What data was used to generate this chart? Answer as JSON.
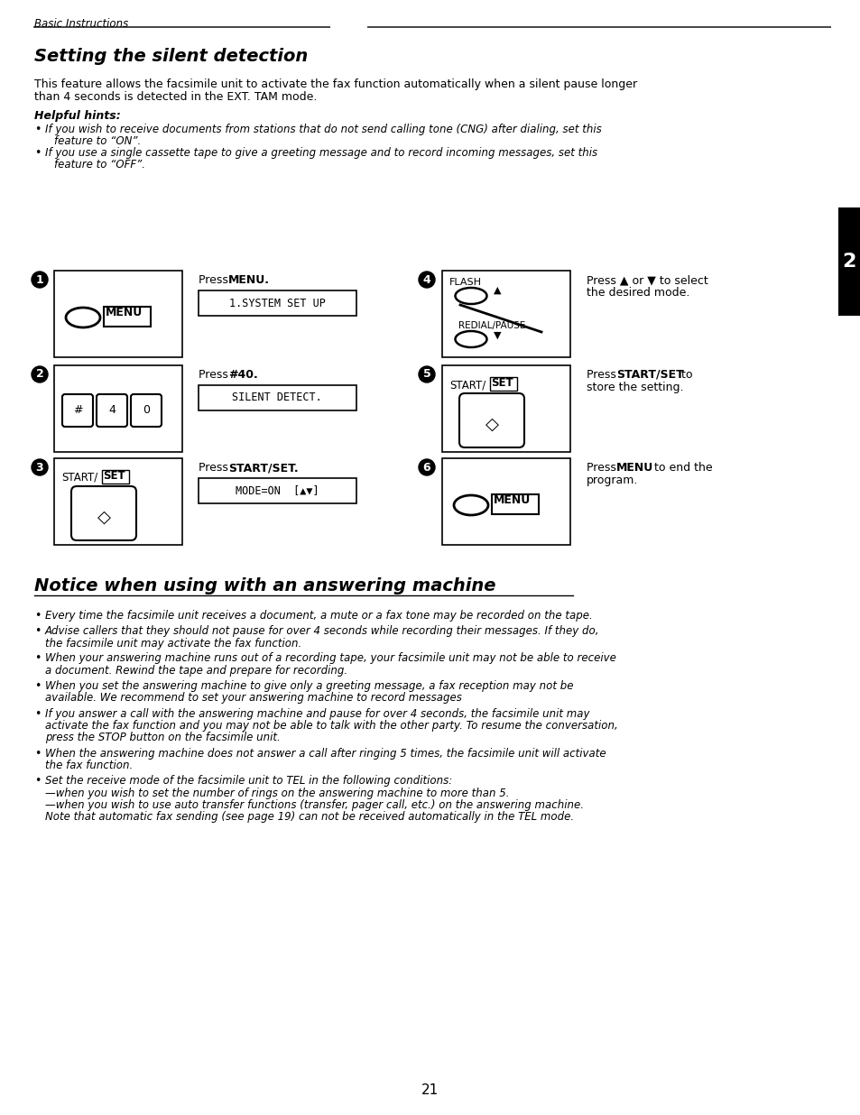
{
  "bg": "#ffffff",
  "header": "Basic Instructions",
  "title1": "Setting the silent detection",
  "body1_line1": "This feature allows the facsimile unit to activate the fax function automatically when a silent pause longer",
  "body1_line2": "than 4 seconds is detected in the EXT. TAM mode.",
  "hints_title": "Helpful hints:",
  "hint1_line1": "If you wish to receive documents from stations that do not send calling tone (CNG) after dialing, set this",
  "hint1_line2": "feature to “ON”.",
  "hint2_line1": "If you use a single cassette tape to give a greeting message and to record incoming messages, set this",
  "hint2_line2": "feature to “OFF”.",
  "title2": "Notice when using with an answering machine",
  "bullets": [
    [
      "Every time the facsimile unit receives a document, a mute or a fax tone may be recorded on the tape."
    ],
    [
      "Advise callers that they should not pause for over 4 seconds while recording their messages. If they do,",
      "the facsimile unit may activate the fax function."
    ],
    [
      "When your answering machine runs out of a recording tape, your facsimile unit may not be able to receive",
      "a document. Rewind the tape and prepare for recording."
    ],
    [
      "When you set the answering machine to give only a greeting message, a fax reception may not be",
      "available. We recommend to set your answering machine to record messages"
    ],
    [
      "If you answer a call with the answering machine and pause for over 4 seconds, the facsimile unit may",
      "activate the fax function and you may not be able to talk with the other party. To resume the conversation,",
      "press the STOP button on the facsimile unit."
    ],
    [
      "When the answering machine does not answer a call after ringing 5 times, the facsimile unit will activate",
      "the fax function."
    ],
    [
      "Set the receive mode of the facsimile unit to TEL in the following conditions:",
      "—when you wish to set the number of rings on the answering machine to more than 5.",
      "—when you wish to use auto transfer functions (transfer, pager call, etc.) on the answering machine.",
      "Note that automatic fax sending (see page 19) can not be received automatically in the TEL mode."
    ]
  ],
  "page_num": "21",
  "tab": "2"
}
